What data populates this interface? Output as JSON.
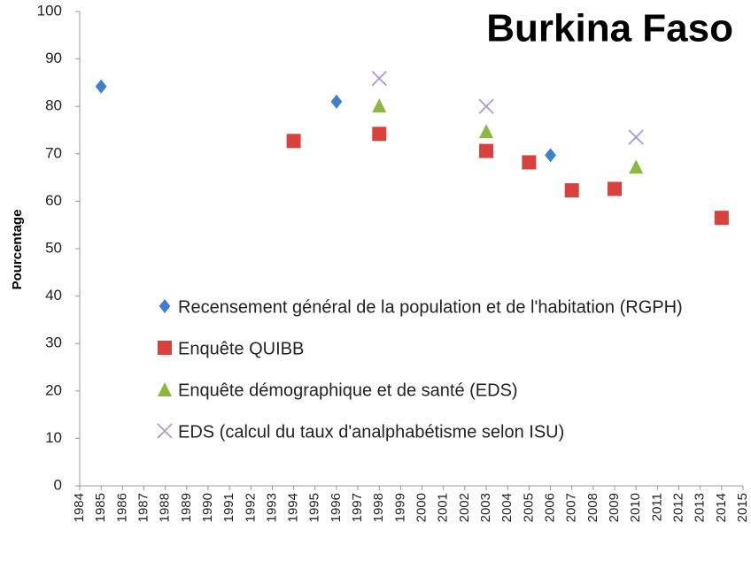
{
  "chart_data": {
    "type": "scatter",
    "title": "Burkina Faso",
    "y_label": "Pourcentage",
    "xlim": [
      1984,
      2015
    ],
    "xticks": [
      1984,
      1985,
      1986,
      1987,
      1988,
      1989,
      1990,
      1991,
      1992,
      1993,
      1994,
      1995,
      1996,
      1997,
      1998,
      1999,
      2000,
      2001,
      2002,
      2003,
      2004,
      2005,
      2006,
      2007,
      2008,
      2009,
      2010,
      2011,
      2012,
      2013,
      2014,
      2015
    ],
    "ylim": [
      0,
      100
    ],
    "yticks": [
      0,
      10,
      20,
      30,
      40,
      50,
      60,
      70,
      80,
      90,
      100
    ],
    "grid": false,
    "series": [
      {
        "name": "Recensement général de la population et de l'habitation (RGPH)",
        "color": "#3f7fcf",
        "marker": "diamond",
        "x": [
          1985,
          1996,
          2006
        ],
        "values": [
          84.2,
          81,
          69.7
        ]
      },
      {
        "name": "Enquête QUIBB",
        "color": "#d9413c",
        "marker": "square",
        "x": [
          1994,
          1998,
          2003,
          2005,
          2007,
          2009,
          2014
        ],
        "values": [
          72.7,
          74.2,
          70.6,
          68.2,
          62.3,
          62.6,
          56.5
        ]
      },
      {
        "name": "Enquête démographique et de santé (EDS)",
        "color": "#8db83f",
        "marker": "triangle",
        "x": [
          1998,
          2003,
          2010
        ],
        "values": [
          80.2,
          74.8,
          67.3
        ]
      },
      {
        "name": "EDS (calcul du taux d'analphabétisme selon ISU)",
        "color": "#a99bcf",
        "marker": "cross",
        "x": [
          1998,
          2003,
          2010
        ],
        "values": [
          85.9,
          80.0,
          73.5
        ]
      }
    ]
  }
}
